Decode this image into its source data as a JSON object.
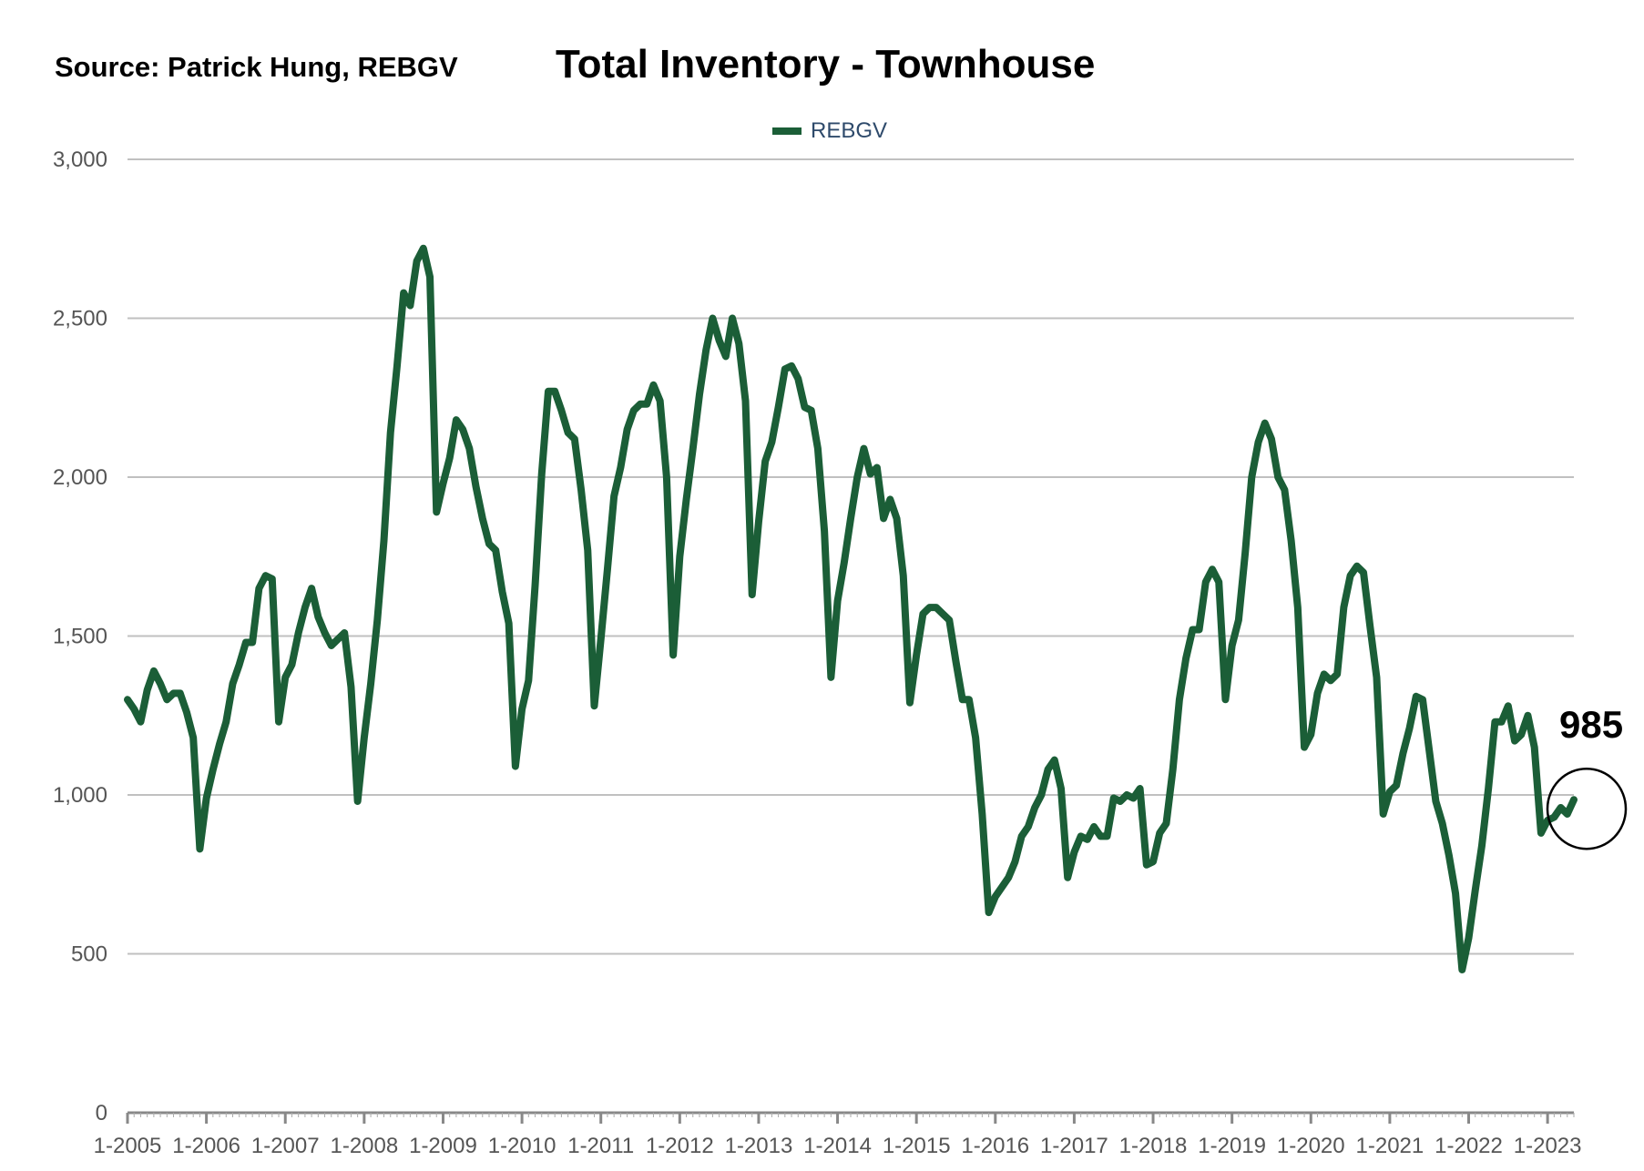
{
  "source_label": "Source:  Patrick Hung, REBGV",
  "colors": {
    "series": "#1b5e37",
    "grid": "#c0c0c0",
    "axis": "#555555"
  },
  "chart_data": {
    "type": "line",
    "title": "Total Inventory - Townhouse",
    "xlabel": "",
    "ylabel": "",
    "ylim": [
      0,
      3000
    ],
    "yticks": [
      0,
      500,
      1000,
      1500,
      2000,
      2500,
      3000
    ],
    "ytick_labels": [
      "0",
      "500",
      "1,000",
      "1,500",
      "2,000",
      "2,500",
      "3,000"
    ],
    "xtick_labels": [
      "1-2005",
      "1-2006",
      "1-2007",
      "1-2008",
      "1-2009",
      "1-2010",
      "1-2011",
      "1-2012",
      "1-2013",
      "1-2014",
      "1-2015",
      "1-2016",
      "1-2017",
      "1-2018",
      "1-2019",
      "1-2020",
      "1-2021",
      "1-2022",
      "1-2023"
    ],
    "x_start": "2005-01",
    "x_end": "2023-05",
    "grid": true,
    "legend_position": "top-center",
    "annotation": {
      "text": "985",
      "date": "2023-05",
      "value": 985
    },
    "series": [
      {
        "name": "REBGV",
        "values": [
          1300,
          1270,
          1230,
          1330,
          1390,
          1350,
          1300,
          1320,
          1320,
          1260,
          1180,
          830,
          990,
          1080,
          1160,
          1230,
          1350,
          1410,
          1480,
          1480,
          1650,
          1690,
          1680,
          1230,
          1370,
          1410,
          1510,
          1590,
          1650,
          1560,
          1510,
          1470,
          1490,
          1510,
          1340,
          980,
          1180,
          1350,
          1550,
          1800,
          2140,
          2350,
          2580,
          2540,
          2680,
          2720,
          2630,
          1890,
          1980,
          2060,
          2180,
          2150,
          2090,
          1970,
          1870,
          1790,
          1770,
          1640,
          1540,
          1090,
          1270,
          1360,
          1660,
          2010,
          2270,
          2270,
          2210,
          2140,
          2120,
          1960,
          1770,
          1280,
          1490,
          1710,
          1940,
          2030,
          2150,
          2210,
          2230,
          2230,
          2290,
          2240,
          2000,
          1440,
          1750,
          1930,
          2090,
          2260,
          2400,
          2500,
          2430,
          2380,
          2500,
          2420,
          2240,
          1630,
          1860,
          2050,
          2110,
          2220,
          2340,
          2350,
          2310,
          2220,
          2210,
          2090,
          1830,
          1370,
          1610,
          1730,
          1870,
          2000,
          2090,
          2010,
          2030,
          1870,
          1930,
          1870,
          1690,
          1290,
          1440,
          1570,
          1590,
          1590,
          1570,
          1550,
          1420,
          1300,
          1300,
          1180,
          940,
          630,
          680,
          710,
          740,
          790,
          870,
          900,
          960,
          1000,
          1080,
          1110,
          1020,
          740,
          820,
          870,
          860,
          900,
          870,
          870,
          990,
          980,
          1000,
          990,
          1020,
          780,
          790,
          880,
          910,
          1080,
          1300,
          1430,
          1520,
          1520,
          1670,
          1710,
          1670,
          1300,
          1470,
          1550,
          1760,
          2000,
          2110,
          2170,
          2120,
          2000,
          1960,
          1800,
          1590,
          1150,
          1190,
          1320,
          1380,
          1360,
          1380,
          1590,
          1690,
          1720,
          1700,
          1530,
          1370,
          940,
          1010,
          1030,
          1130,
          1210,
          1310,
          1300,
          1140,
          980,
          910,
          810,
          690,
          450,
          550,
          700,
          840,
          1020,
          1230,
          1230,
          1280,
          1170,
          1190,
          1250,
          1150,
          880,
          920,
          930,
          960,
          940,
          985
        ]
      }
    ]
  }
}
